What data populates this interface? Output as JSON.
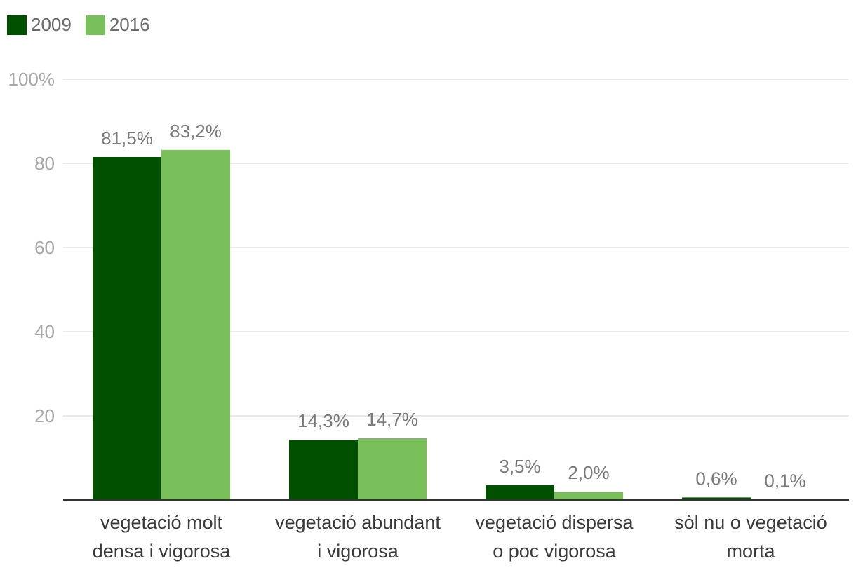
{
  "chart_data": {
    "type": "bar",
    "categories": [
      "vegetació molt densa i vigorosa",
      "vegetació abundant i vigorosa",
      "vegetació dispersa o poc vigorosa",
      "sòl nu o vegetació morta"
    ],
    "category_lines": [
      [
        "vegetació molt",
        "densa i vigorosa"
      ],
      [
        "vegetació abundant",
        "i vigorosa"
      ],
      [
        "vegetació dispersa",
        "o poc vigorosa"
      ],
      [
        "sòl nu o vegetació",
        "morta"
      ]
    ],
    "series": [
      {
        "name": "2009",
        "values": [
          81.5,
          14.3,
          3.5,
          0.6
        ],
        "labels": [
          "81,5%",
          "14,3%",
          "3,5%",
          "0,6%"
        ],
        "color": "#005000"
      },
      {
        "name": "2016",
        "values": [
          83.2,
          14.7,
          2.0,
          0.1
        ],
        "labels": [
          "83,2%",
          "14,7%",
          "2,0%",
          "0,1%"
        ],
        "color": "#79c05a"
      }
    ],
    "ylim": [
      0,
      100
    ],
    "yticks": [
      20,
      40,
      60,
      80,
      100
    ],
    "ytick_labels": [
      "20",
      "40",
      "60",
      "80",
      "100%"
    ],
    "grid": true,
    "legend_position": "top-left",
    "xlabel": "",
    "ylabel": ""
  }
}
